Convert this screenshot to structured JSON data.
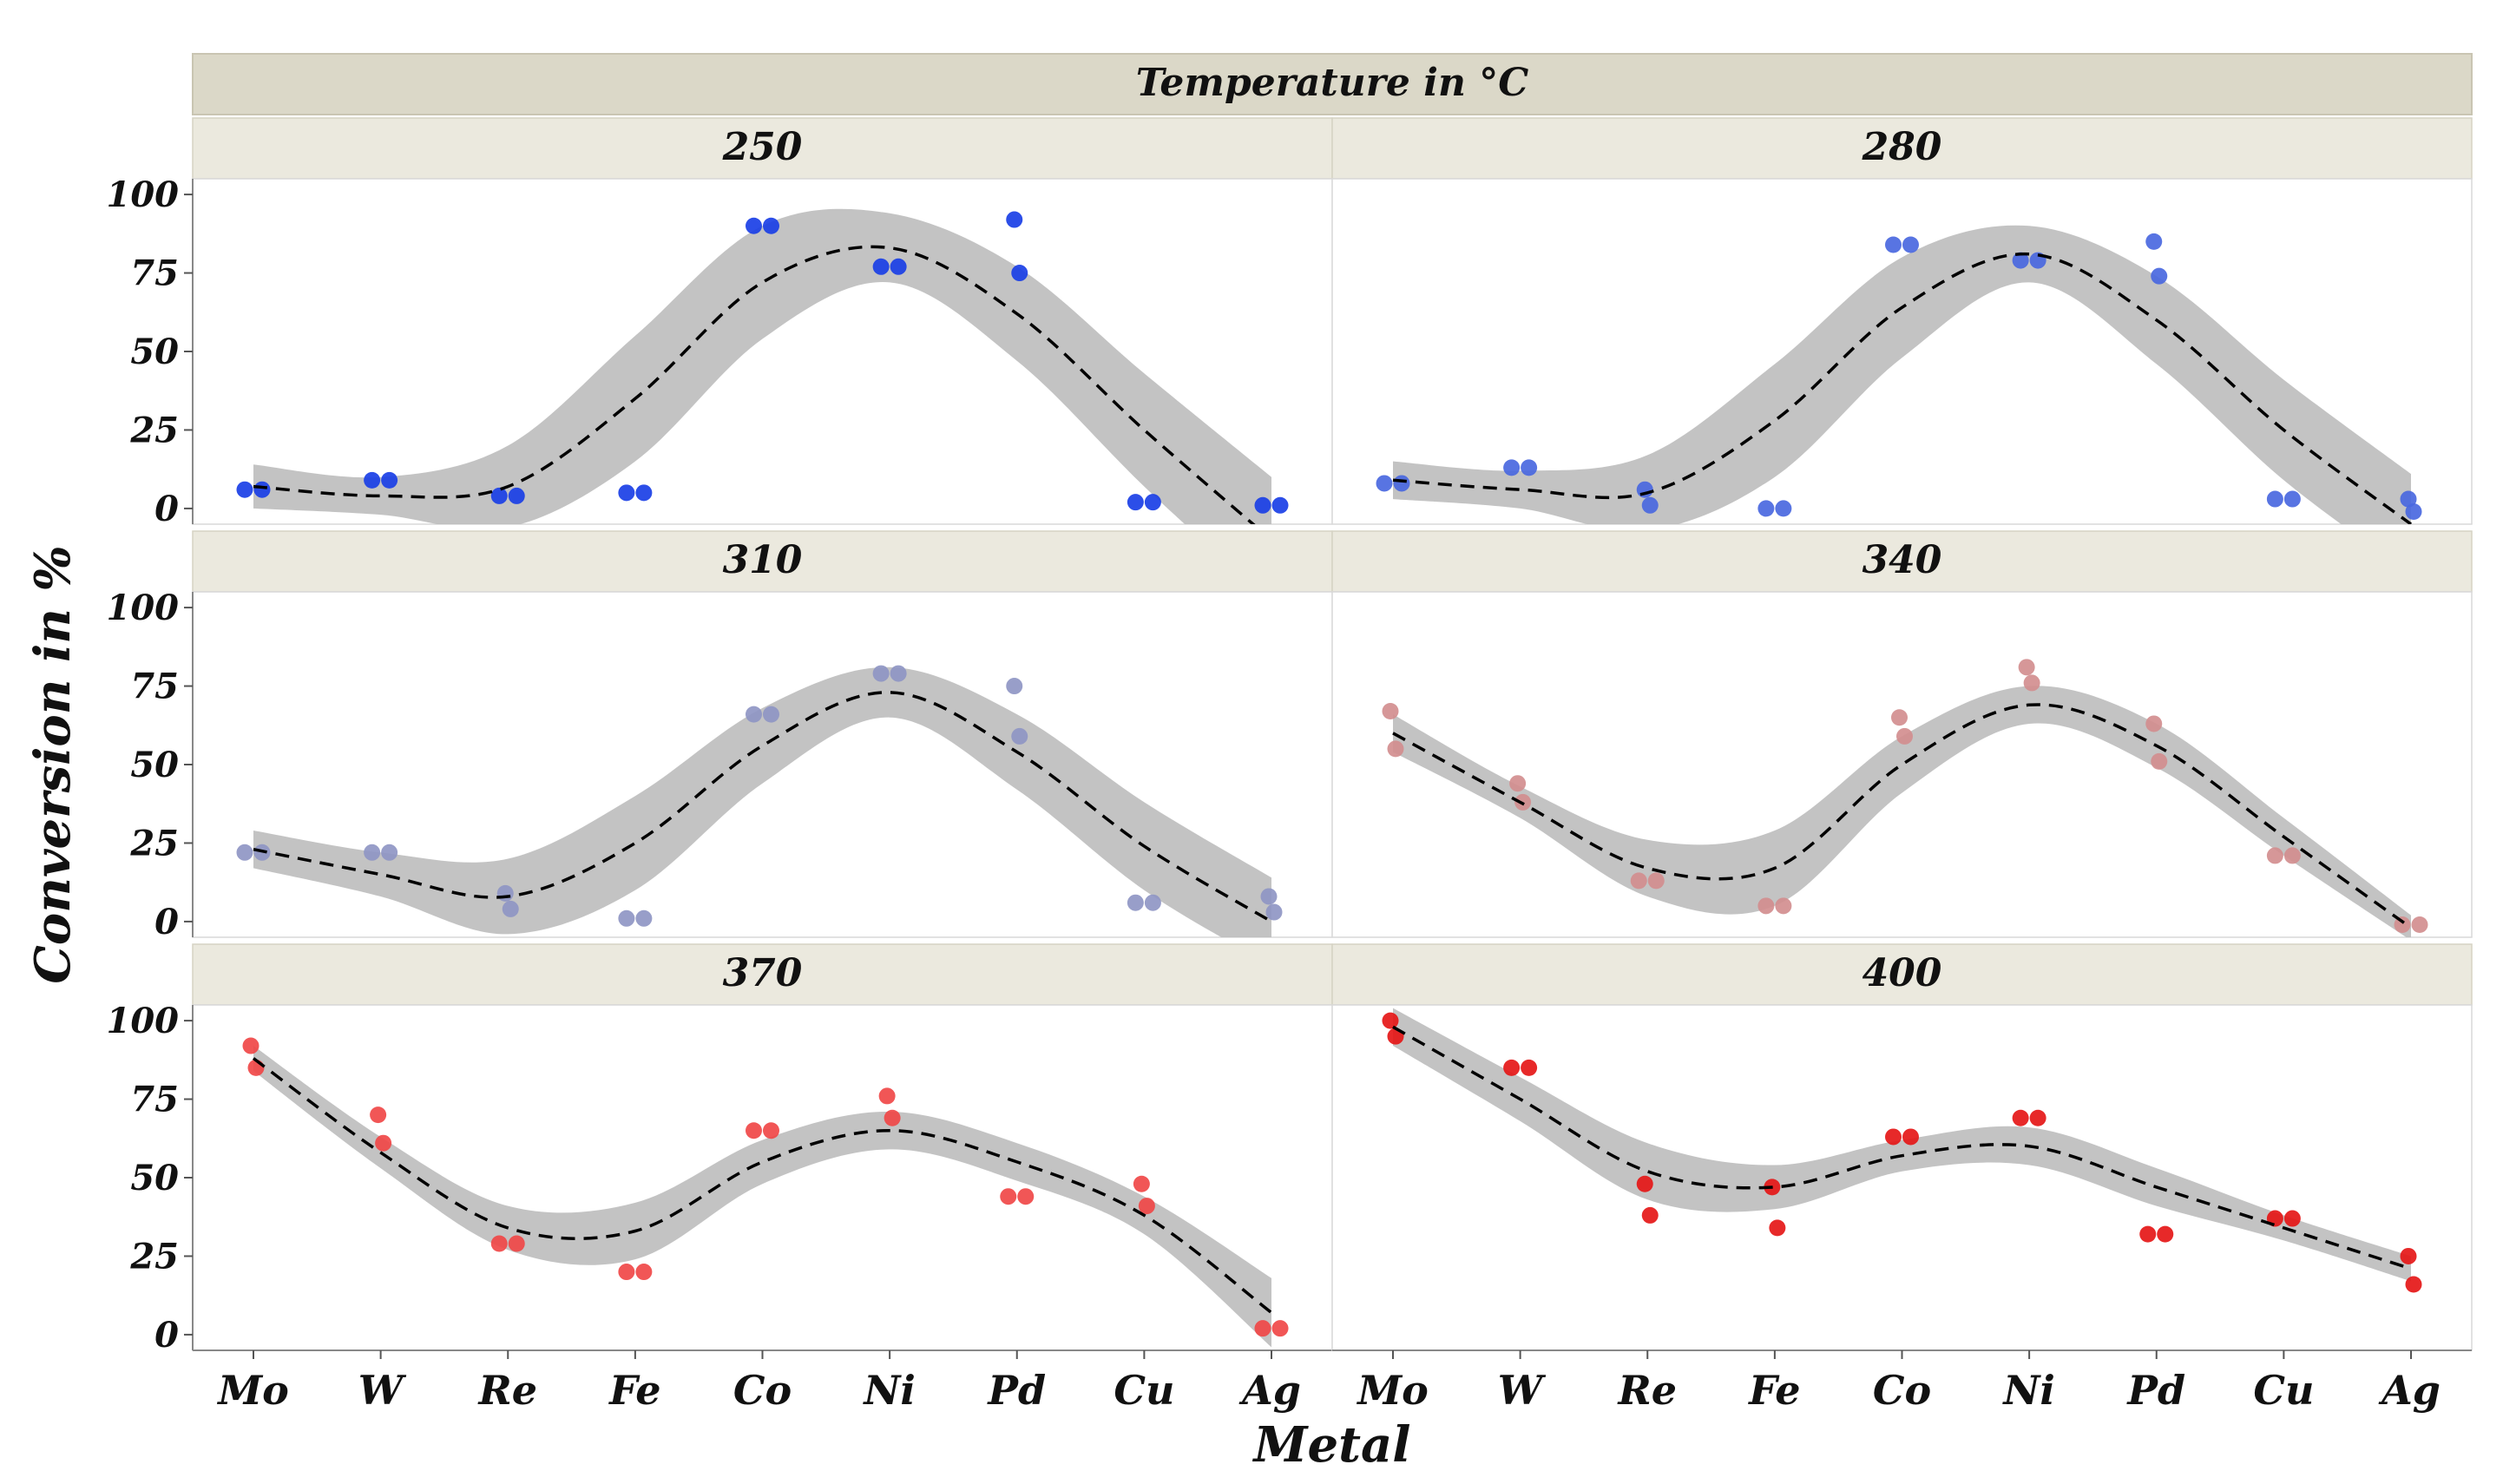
{
  "chart_data": {
    "type": "scatter",
    "title": "Temperature in °C",
    "xlabel": "Metal",
    "ylabel": "Conversion in %",
    "categories": [
      "Mo",
      "W",
      "Re",
      "Fe",
      "Co",
      "Ni",
      "Pd",
      "Cu",
      "Ag"
    ],
    "y_ticks": [
      "0",
      "25",
      "50",
      "75",
      "100"
    ],
    "ylim": [
      -5,
      105
    ],
    "grid": false,
    "legend": "none",
    "panels": [
      {
        "label": "250",
        "color": "#1a3fe6",
        "points": [
          {
            "x": "Mo",
            "y": 6
          },
          {
            "x": "Mo",
            "y": 6
          },
          {
            "x": "W",
            "y": 9
          },
          {
            "x": "W",
            "y": 9
          },
          {
            "x": "Re",
            "y": 4
          },
          {
            "x": "Re",
            "y": 4
          },
          {
            "x": "Fe",
            "y": 5
          },
          {
            "x": "Fe",
            "y": 5
          },
          {
            "x": "Co",
            "y": 90
          },
          {
            "x": "Co",
            "y": 90
          },
          {
            "x": "Ni",
            "y": 77
          },
          {
            "x": "Ni",
            "y": 77
          },
          {
            "x": "Pd",
            "y": 92
          },
          {
            "x": "Pd",
            "y": 75
          },
          {
            "x": "Cu",
            "y": 2
          },
          {
            "x": "Cu",
            "y": 2
          },
          {
            "x": "Ag",
            "y": 1
          },
          {
            "x": "Ag",
            "y": 1
          }
        ],
        "fit": [
          7,
          4,
          7,
          35,
          72,
          83,
          62,
          25,
          -10
        ],
        "band": [
          7,
          6,
          13,
          20,
          18,
          11,
          15,
          18,
          20
        ]
      },
      {
        "label": "280",
        "color": "#4a68e0",
        "points": [
          {
            "x": "Mo",
            "y": 8
          },
          {
            "x": "Mo",
            "y": 8
          },
          {
            "x": "W",
            "y": 13
          },
          {
            "x": "W",
            "y": 13
          },
          {
            "x": "Re",
            "y": 6
          },
          {
            "x": "Re",
            "y": 1
          },
          {
            "x": "Fe",
            "y": 0
          },
          {
            "x": "Fe",
            "y": 0
          },
          {
            "x": "Co",
            "y": 84
          },
          {
            "x": "Co",
            "y": 84
          },
          {
            "x": "Ni",
            "y": 79
          },
          {
            "x": "Ni",
            "y": 79
          },
          {
            "x": "Pd",
            "y": 85
          },
          {
            "x": "Pd",
            "y": 74
          },
          {
            "x": "Cu",
            "y": 3
          },
          {
            "x": "Cu",
            "y": 3
          },
          {
            "x": "Ag",
            "y": 3
          },
          {
            "x": "Ag",
            "y": -1
          }
        ],
        "fit": [
          9,
          6,
          5,
          28,
          64,
          81,
          60,
          25,
          -5
        ],
        "band": [
          6,
          6,
          12,
          18,
          16,
          9,
          14,
          16,
          16
        ]
      },
      {
        "label": "310",
        "color": "#8f96c4",
        "points": [
          {
            "x": "Mo",
            "y": 22
          },
          {
            "x": "Mo",
            "y": 22
          },
          {
            "x": "W",
            "y": 22
          },
          {
            "x": "W",
            "y": 22
          },
          {
            "x": "Re",
            "y": 9
          },
          {
            "x": "Re",
            "y": 4
          },
          {
            "x": "Fe",
            "y": 1
          },
          {
            "x": "Fe",
            "y": 1
          },
          {
            "x": "Co",
            "y": 66
          },
          {
            "x": "Co",
            "y": 66
          },
          {
            "x": "Ni",
            "y": 79
          },
          {
            "x": "Ni",
            "y": 79
          },
          {
            "x": "Pd",
            "y": 75
          },
          {
            "x": "Pd",
            "y": 59
          },
          {
            "x": "Cu",
            "y": 6
          },
          {
            "x": "Cu",
            "y": 6
          },
          {
            "x": "Ag",
            "y": 8
          },
          {
            "x": "Ag",
            "y": 3
          }
        ],
        "fit": [
          23,
          15,
          8,
          25,
          56,
          73,
          54,
          24,
          0
        ],
        "band": [
          6,
          7,
          12,
          15,
          12,
          8,
          12,
          14,
          14
        ]
      },
      {
        "label": "340",
        "color": "#d28e8f",
        "points": [
          {
            "x": "Mo",
            "y": 67
          },
          {
            "x": "Mo",
            "y": 55
          },
          {
            "x": "W",
            "y": 44
          },
          {
            "x": "W",
            "y": 38
          },
          {
            "x": "Re",
            "y": 13
          },
          {
            "x": "Re",
            "y": 13
          },
          {
            "x": "Fe",
            "y": 5
          },
          {
            "x": "Fe",
            "y": 5
          },
          {
            "x": "Co",
            "y": 65
          },
          {
            "x": "Co",
            "y": 59
          },
          {
            "x": "Ni",
            "y": 81
          },
          {
            "x": "Ni",
            "y": 76
          },
          {
            "x": "Pd",
            "y": 63
          },
          {
            "x": "Pd",
            "y": 51
          },
          {
            "x": "Cu",
            "y": 21
          },
          {
            "x": "Cu",
            "y": 21
          },
          {
            "x": "Ag",
            "y": -1
          },
          {
            "x": "Ag",
            "y": -1
          }
        ],
        "fit": [
          60,
          38,
          17,
          17,
          50,
          69,
          56,
          27,
          -2
        ],
        "band": [
          6,
          5,
          9,
          12,
          9,
          6,
          7,
          6,
          4
        ]
      },
      {
        "label": "370",
        "color": "#f04848",
        "points": [
          {
            "x": "Mo",
            "y": 92
          },
          {
            "x": "Mo",
            "y": 85
          },
          {
            "x": "W",
            "y": 70
          },
          {
            "x": "W",
            "y": 61
          },
          {
            "x": "Re",
            "y": 29
          },
          {
            "x": "Re",
            "y": 29
          },
          {
            "x": "Fe",
            "y": 20
          },
          {
            "x": "Fe",
            "y": 20
          },
          {
            "x": "Co",
            "y": 65
          },
          {
            "x": "Co",
            "y": 65
          },
          {
            "x": "Ni",
            "y": 76
          },
          {
            "x": "Ni",
            "y": 69
          },
          {
            "x": "Pd",
            "y": 44
          },
          {
            "x": "Pd",
            "y": 44
          },
          {
            "x": "Cu",
            "y": 48
          },
          {
            "x": "Cu",
            "y": 41
          },
          {
            "x": "Ag",
            "y": 2
          },
          {
            "x": "Ag",
            "y": 2
          }
        ],
        "fit": [
          88,
          58,
          34,
          33,
          55,
          65,
          55,
          38,
          7
        ],
        "band": [
          4,
          5,
          7,
          9,
          7,
          6,
          6,
          6,
          11
        ]
      },
      {
        "label": "400",
        "color": "#e51717",
        "points": [
          {
            "x": "Mo",
            "y": 100
          },
          {
            "x": "Mo",
            "y": 95
          },
          {
            "x": "W",
            "y": 85
          },
          {
            "x": "W",
            "y": 85
          },
          {
            "x": "Re",
            "y": 48
          },
          {
            "x": "Re",
            "y": 38
          },
          {
            "x": "Fe",
            "y": 47
          },
          {
            "x": "Fe",
            "y": 34
          },
          {
            "x": "Co",
            "y": 63
          },
          {
            "x": "Co",
            "y": 63
          },
          {
            "x": "Ni",
            "y": 69
          },
          {
            "x": "Ni",
            "y": 69
          },
          {
            "x": "Pd",
            "y": 32
          },
          {
            "x": "Pd",
            "y": 32
          },
          {
            "x": "Cu",
            "y": 37
          },
          {
            "x": "Cu",
            "y": 37
          },
          {
            "x": "Ag",
            "y": 25
          },
          {
            "x": "Ag",
            "y": 16
          }
        ],
        "fit": [
          98,
          75,
          52,
          47,
          57,
          60,
          47,
          34,
          21
        ],
        "band": [
          6,
          7,
          9,
          7,
          5,
          6,
          6,
          4,
          4
        ]
      }
    ]
  }
}
